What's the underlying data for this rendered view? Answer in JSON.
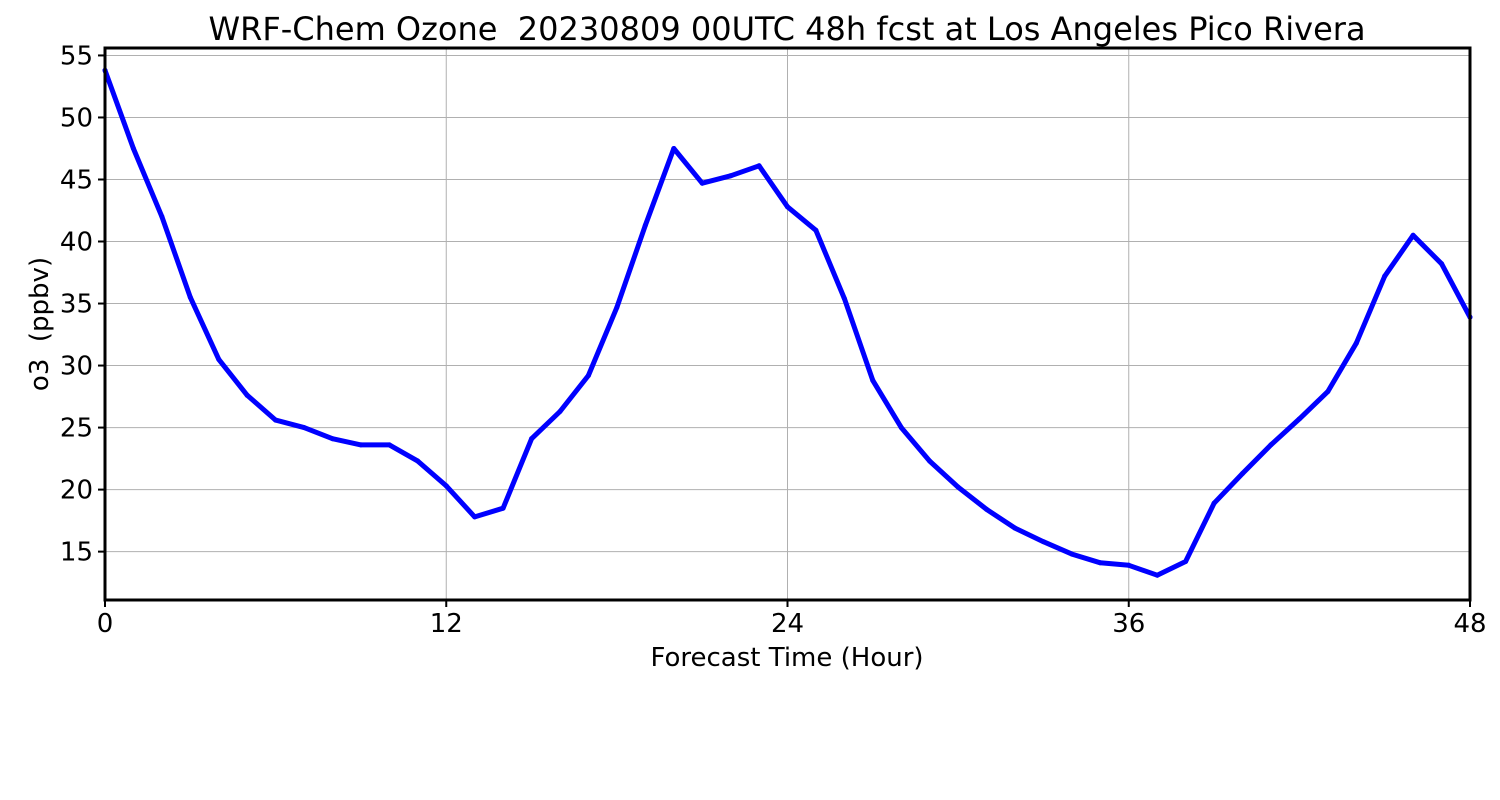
{
  "chart_data": {
    "type": "line",
    "title": "WRF-Chem Ozone  20230809 00UTC 48h fcst at Los Angeles Pico Rivera",
    "xlabel": "Forecast Time (Hour)",
    "ylabel": "o3  (ppbv)",
    "xlim": [
      0,
      48
    ],
    "ylim": [
      11.1,
      55.6
    ],
    "xticks": [
      0,
      12,
      24,
      36,
      48
    ],
    "yticks": [
      15,
      20,
      25,
      30,
      35,
      40,
      45,
      50,
      55
    ],
    "grid": true,
    "series": [
      {
        "color": "#0000ff",
        "x": [
          0,
          1,
          2,
          3,
          4,
          5,
          6,
          7,
          8,
          9,
          10,
          11,
          12,
          13,
          14,
          15,
          16,
          17,
          18,
          19,
          20,
          21,
          22,
          23,
          24,
          25,
          26,
          27,
          28,
          29,
          30,
          31,
          32,
          33,
          34,
          35,
          36,
          37,
          38,
          39,
          40,
          41,
          42,
          43,
          44,
          45,
          46,
          47,
          48
        ],
        "values": [
          53.8,
          47.5,
          42.0,
          35.5,
          30.5,
          27.6,
          25.6,
          25.0,
          24.1,
          23.6,
          23.6,
          22.3,
          20.3,
          17.8,
          18.5,
          24.1,
          26.3,
          29.2,
          34.7,
          41.3,
          47.5,
          44.7,
          45.3,
          46.1,
          42.8,
          40.9,
          35.4,
          28.8,
          25.0,
          22.3,
          20.2,
          18.4,
          16.9,
          15.8,
          14.8,
          14.1,
          13.9,
          13.1,
          14.2,
          18.9,
          21.3,
          23.6,
          25.7,
          27.9,
          31.8,
          37.2,
          40.5,
          38.2,
          33.9
        ]
      }
    ]
  }
}
